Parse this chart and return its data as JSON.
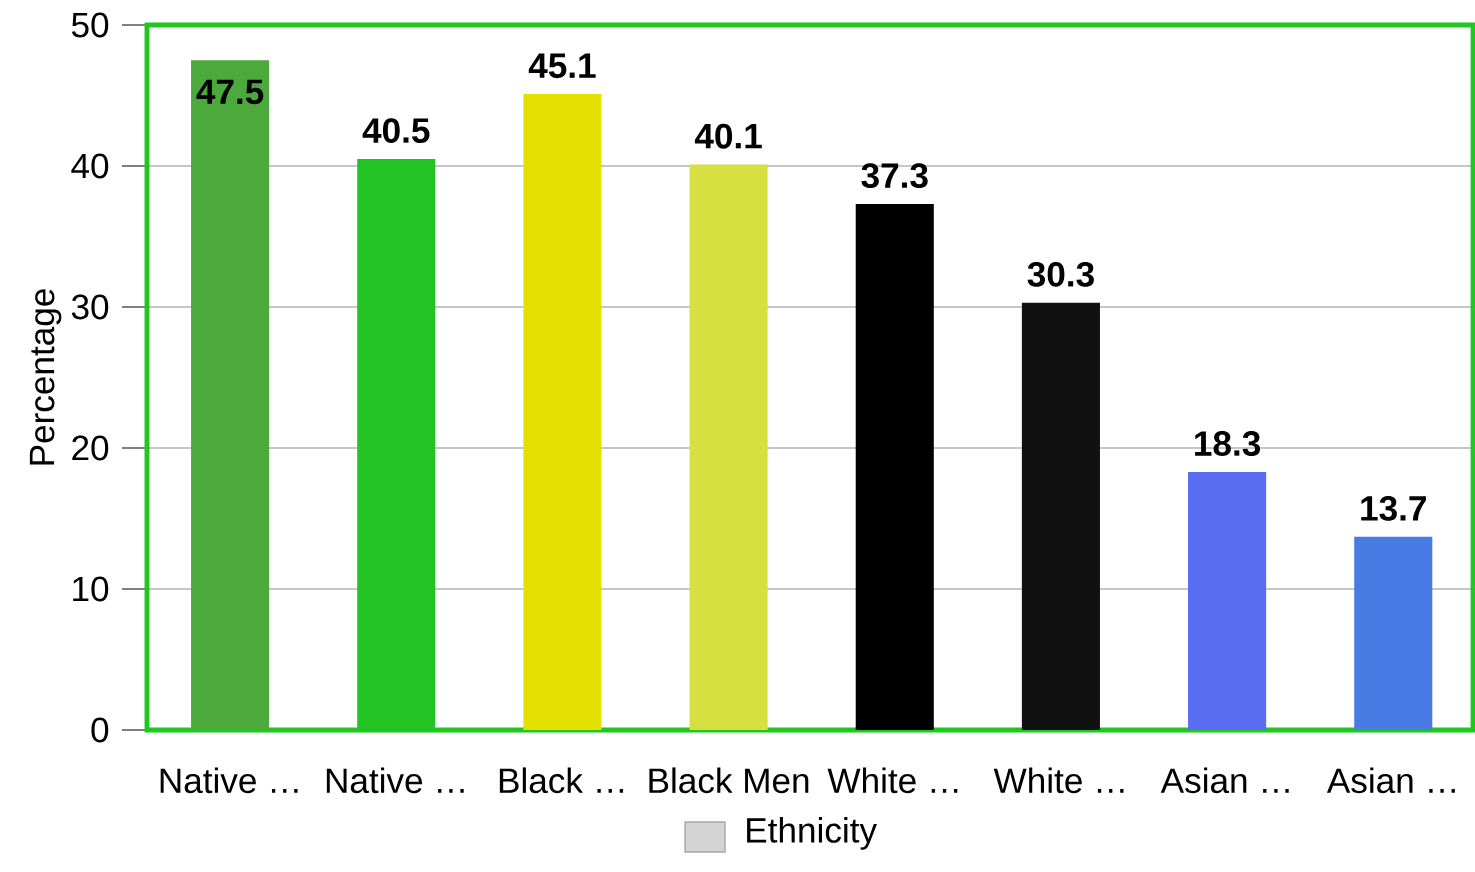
{
  "chart_data": {
    "type": "bar",
    "categories": [
      "Native …",
      "Native …",
      "Black …",
      "Black Men",
      "White …",
      "White …",
      "Asian …",
      "Asian …"
    ],
    "series": [
      {
        "name": "Ethnicity",
        "color": "#d4d4d4",
        "colors": [
          "#4caa3c",
          "#22c322",
          "#e4e000",
          "#d6e040",
          "#000000",
          "#111111",
          "#5a6cf2",
          "#4a7ae4"
        ],
        "values": [
          47.5,
          40.5,
          45.1,
          40.1,
          37.3,
          30.3,
          18.3,
          13.7
        ]
      }
    ],
    "ylabel": "Percentage",
    "ylim": [
      0,
      50
    ],
    "yticks": [
      0,
      10,
      20,
      30,
      40,
      50
    ],
    "grid": "y",
    "legend": "bottom",
    "data_labels": true
  }
}
